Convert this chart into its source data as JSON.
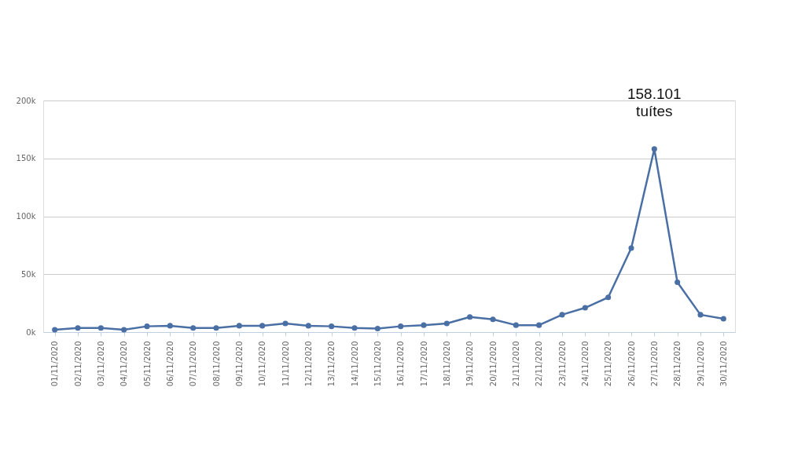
{
  "chart_data": {
    "type": "line",
    "categories": [
      "01/11/2020",
      "02/11/2020",
      "03/11/2020",
      "04/11/2020",
      "05/11/2020",
      "06/11/2020",
      "07/11/2020",
      "08/11/2020",
      "09/11/2020",
      "10/11/2020",
      "11/11/2020",
      "12/11/2020",
      "13/11/2020",
      "14/11/2020",
      "15/11/2020",
      "16/11/2020",
      "17/11/2020",
      "18/11/2020",
      "19/11/2020",
      "20/11/2020",
      "21/11/2020",
      "22/11/2020",
      "23/11/2020",
      "24/11/2020",
      "25/11/2020",
      "26/11/2020",
      "27/11/2020",
      "28/11/2020",
      "29/11/2020",
      "30/11/2020"
    ],
    "series": [
      {
        "color": "#4a6fa5",
        "values": [
          2000,
          3500,
          3500,
          2000,
          5000,
          5500,
          3500,
          3500,
          5500,
          5500,
          7500,
          5500,
          5000,
          3500,
          3000,
          5000,
          6000,
          7500,
          13000,
          11000,
          6000,
          6000,
          15000,
          21000,
          30000,
          72500,
          158101,
          43000,
          15000,
          11500
        ]
      }
    ],
    "ylim": [
      0,
      200000
    ],
    "yticks": [
      {
        "value": 0,
        "label": "0k"
      },
      {
        "value": 50000,
        "label": "50k"
      },
      {
        "value": 100000,
        "label": "100k"
      },
      {
        "value": 150000,
        "label": "150k"
      },
      {
        "value": 200000,
        "label": "200k"
      }
    ],
    "grid": "y",
    "marker": "circle",
    "line_style": "solid",
    "annotations": [
      {
        "text": "158.101 tuítes",
        "x": "27/11/2020",
        "y": 158101
      }
    ]
  }
}
